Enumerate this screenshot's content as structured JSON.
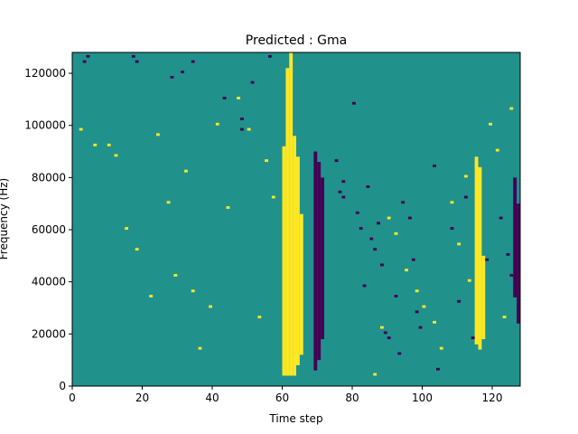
{
  "chart_data": {
    "type": "heatmap",
    "title": "Predicted : Gma",
    "xlabel": "Time step",
    "ylabel": "Frequency (Hz)",
    "xlim": [
      0,
      128
    ],
    "ylim": [
      0,
      128000
    ],
    "xticks": [
      0,
      20,
      40,
      60,
      80,
      100,
      120
    ],
    "yticks": [
      0,
      20000,
      40000,
      60000,
      80000,
      100000,
      120000
    ],
    "grid": false,
    "colormap": "viridis",
    "class_colors": {
      "background": "#21918c",
      "low": "#440154",
      "high": "#fde725"
    },
    "bins": {
      "time_steps": 128,
      "frequency_bins": 128,
      "bin_height_hz": 1000
    },
    "low_cells": [
      [
        3,
        124000
      ],
      [
        4,
        126000
      ],
      [
        17,
        126000
      ],
      [
        18,
        124000
      ],
      [
        28,
        118000
      ],
      [
        31,
        120000
      ],
      [
        34,
        124000
      ],
      [
        43,
        110000
      ],
      [
        48,
        102000
      ],
      [
        48,
        98000
      ],
      [
        51,
        116000
      ],
      [
        56,
        126000
      ],
      [
        75,
        86000
      ],
      [
        77,
        78000
      ],
      [
        76,
        74000
      ],
      [
        77,
        72000
      ],
      [
        80,
        108000
      ],
      [
        81,
        66000
      ],
      [
        82,
        60000
      ],
      [
        83,
        38000
      ],
      [
        84,
        76000
      ],
      [
        85,
        56000
      ],
      [
        86,
        52000
      ],
      [
        87,
        62000
      ],
      [
        88,
        46000
      ],
      [
        89,
        20000
      ],
      [
        90,
        18000
      ],
      [
        92,
        34000
      ],
      [
        93,
        12000
      ],
      [
        94,
        70000
      ],
      [
        96,
        64000
      ],
      [
        97,
        48000
      ],
      [
        98,
        28000
      ],
      [
        99,
        22000
      ],
      [
        103,
        84000
      ],
      [
        104,
        6000
      ],
      [
        108,
        60000
      ],
      [
        110,
        32000
      ],
      [
        112,
        72000
      ],
      [
        114,
        18000
      ],
      [
        118,
        48000
      ],
      [
        122,
        64000
      ],
      [
        124,
        50000
      ],
      [
        125,
        42000
      ],
      [
        126,
        36000
      ],
      [
        127,
        30000
      ],
      [
        127,
        58000
      ]
    ],
    "high_cells": [
      [
        2,
        98000
      ],
      [
        6,
        92000
      ],
      [
        10,
        92000
      ],
      [
        12,
        88000
      ],
      [
        15,
        60000
      ],
      [
        18,
        52000
      ],
      [
        22,
        34000
      ],
      [
        24,
        96000
      ],
      [
        27,
        70000
      ],
      [
        29,
        42000
      ],
      [
        32,
        82000
      ],
      [
        34,
        36000
      ],
      [
        36,
        14000
      ],
      [
        39,
        30000
      ],
      [
        41,
        100000
      ],
      [
        44,
        68000
      ],
      [
        47,
        110000
      ],
      [
        50,
        98000
      ],
      [
        53,
        26000
      ],
      [
        55,
        86000
      ],
      [
        57,
        72000
      ],
      [
        86,
        4000
      ],
      [
        88,
        22000
      ],
      [
        90,
        64000
      ],
      [
        92,
        58000
      ],
      [
        95,
        44000
      ],
      [
        98,
        36000
      ],
      [
        100,
        30000
      ],
      [
        103,
        24000
      ],
      [
        105,
        14000
      ],
      [
        108,
        70000
      ],
      [
        110,
        54000
      ],
      [
        112,
        80000
      ],
      [
        113,
        40000
      ],
      [
        119,
        100000
      ],
      [
        121,
        90000
      ],
      [
        123,
        26000
      ],
      [
        125,
        106000
      ]
    ],
    "high_columns": [
      {
        "x": 60,
        "ranges": [
          [
            4000,
            92000
          ]
        ]
      },
      {
        "x": 61,
        "ranges": [
          [
            4000,
            122000
          ]
        ]
      },
      {
        "x": 62,
        "ranges": [
          [
            4000,
            128000
          ]
        ]
      },
      {
        "x": 63,
        "ranges": [
          [
            4000,
            96000
          ]
        ]
      },
      {
        "x": 64,
        "ranges": [
          [
            8000,
            88000
          ]
        ]
      },
      {
        "x": 65,
        "ranges": [
          [
            12000,
            66000
          ]
        ]
      },
      {
        "x": 115,
        "ranges": [
          [
            16000,
            88000
          ]
        ]
      },
      {
        "x": 116,
        "ranges": [
          [
            14000,
            84000
          ]
        ]
      },
      {
        "x": 117,
        "ranges": [
          [
            18000,
            50000
          ]
        ]
      }
    ],
    "low_columns": [
      {
        "x": 69,
        "ranges": [
          [
            6000,
            90000
          ]
        ]
      },
      {
        "x": 70,
        "ranges": [
          [
            10000,
            86000
          ]
        ]
      },
      {
        "x": 71,
        "ranges": [
          [
            18000,
            80000
          ]
        ]
      },
      {
        "x": 126,
        "ranges": [
          [
            34000,
            80000
          ]
        ]
      },
      {
        "x": 127,
        "ranges": [
          [
            24000,
            70000
          ]
        ]
      }
    ]
  }
}
